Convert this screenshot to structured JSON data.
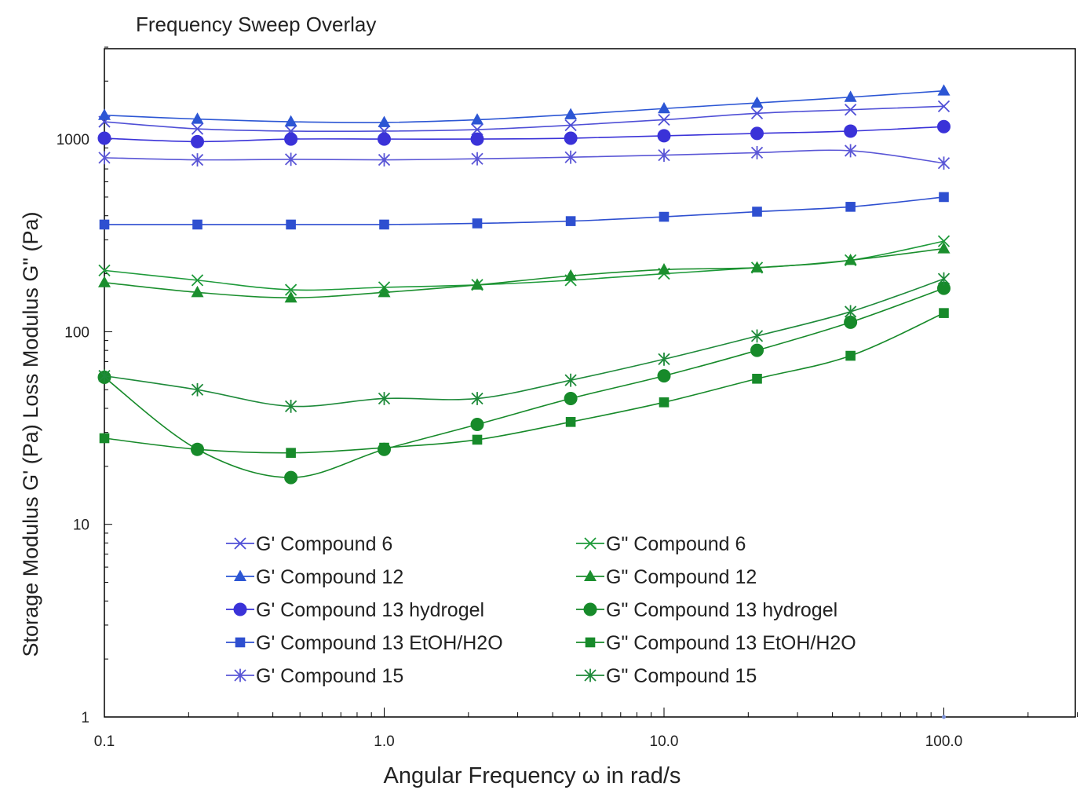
{
  "chart_data": {
    "type": "line",
    "title": "Frequency Sweep Overlay",
    "xlabel": "Angular Frequency ω in rad/s",
    "ylabel": "Storage Modulus G' (Pa)  Loss Modulus G\" (Pa)",
    "x_scale": "log",
    "y_scale": "log",
    "xlim": [
      0.1,
      370
    ],
    "ylim": [
      1,
      3000
    ],
    "x_ticks": [
      {
        "value": 0.1,
        "label": "0.1"
      },
      {
        "value": 1,
        "label": "1.0"
      },
      {
        "value": 10,
        "label": "10.0"
      },
      {
        "value": 100,
        "label": "100.0"
      }
    ],
    "y_ticks": [
      {
        "value": 1,
        "label": "1"
      },
      {
        "value": 10,
        "label": "10"
      },
      {
        "value": 100,
        "label": "100"
      },
      {
        "value": 1000,
        "label": "1000"
      }
    ],
    "legend_position": "bottom-center",
    "x": [
      0.1,
      0.215,
      0.464,
      1.0,
      2.15,
      4.64,
      10.0,
      21.5,
      46.4,
      100.0
    ],
    "series": [
      {
        "name": "G' Compound 6",
        "color": "#4f4fd6",
        "marker": "x",
        "values": [
          1230,
          1130,
          1100,
          1100,
          1120,
          1180,
          1260,
          1360,
          1420,
          1480
        ]
      },
      {
        "name": "G' Compound 12",
        "color": "#2c56d4",
        "marker": "triangle",
        "values": [
          1330,
          1270,
          1230,
          1220,
          1260,
          1340,
          1440,
          1540,
          1650,
          1780
        ]
      },
      {
        "name": "G' Compound 13 hydrogel",
        "color": "#3a32d8",
        "marker": "circle",
        "values": [
          1010,
          970,
          1000,
          1000,
          1000,
          1010,
          1040,
          1070,
          1100,
          1160
        ]
      },
      {
        "name": "G' Compound 13 EtOH/H2O",
        "color": "#2e4fd0",
        "marker": "square",
        "values": [
          360,
          360,
          360,
          360,
          365,
          375,
          395,
          420,
          445,
          500
        ]
      },
      {
        "name": "G' Compound 15",
        "color": "#5a56d6",
        "marker": "star",
        "values": [
          800,
          780,
          785,
          780,
          790,
          805,
          825,
          850,
          870,
          750
        ]
      },
      {
        "name": "G\" Compound 6",
        "color": "#1e9a3a",
        "marker": "x",
        "values": [
          208,
          185,
          165,
          170,
          175,
          185,
          200,
          215,
          235,
          295
        ]
      },
      {
        "name": "G\" Compound 12",
        "color": "#1b8f2e",
        "marker": "triangle",
        "values": [
          180,
          160,
          150,
          160,
          175,
          195,
          210,
          215,
          235,
          270
        ]
      },
      {
        "name": "G\" Compound 13 hydrogel",
        "color": "#178a2a",
        "marker": "circle",
        "values": [
          58,
          24.5,
          17.5,
          24.5,
          33,
          45,
          59,
          80,
          112,
          168
        ]
      },
      {
        "name": "G\" Compound 13 EtOH/H2O",
        "color": "#178a2a",
        "marker": "square",
        "values": [
          28,
          24.5,
          23.5,
          25,
          27.5,
          34,
          43,
          57,
          75,
          125
        ]
      },
      {
        "name": "G\" Compound 15",
        "color": "#1e8a3a",
        "marker": "star",
        "values": [
          59,
          50,
          41,
          45,
          45,
          56,
          72,
          95,
          127,
          188
        ]
      }
    ]
  }
}
